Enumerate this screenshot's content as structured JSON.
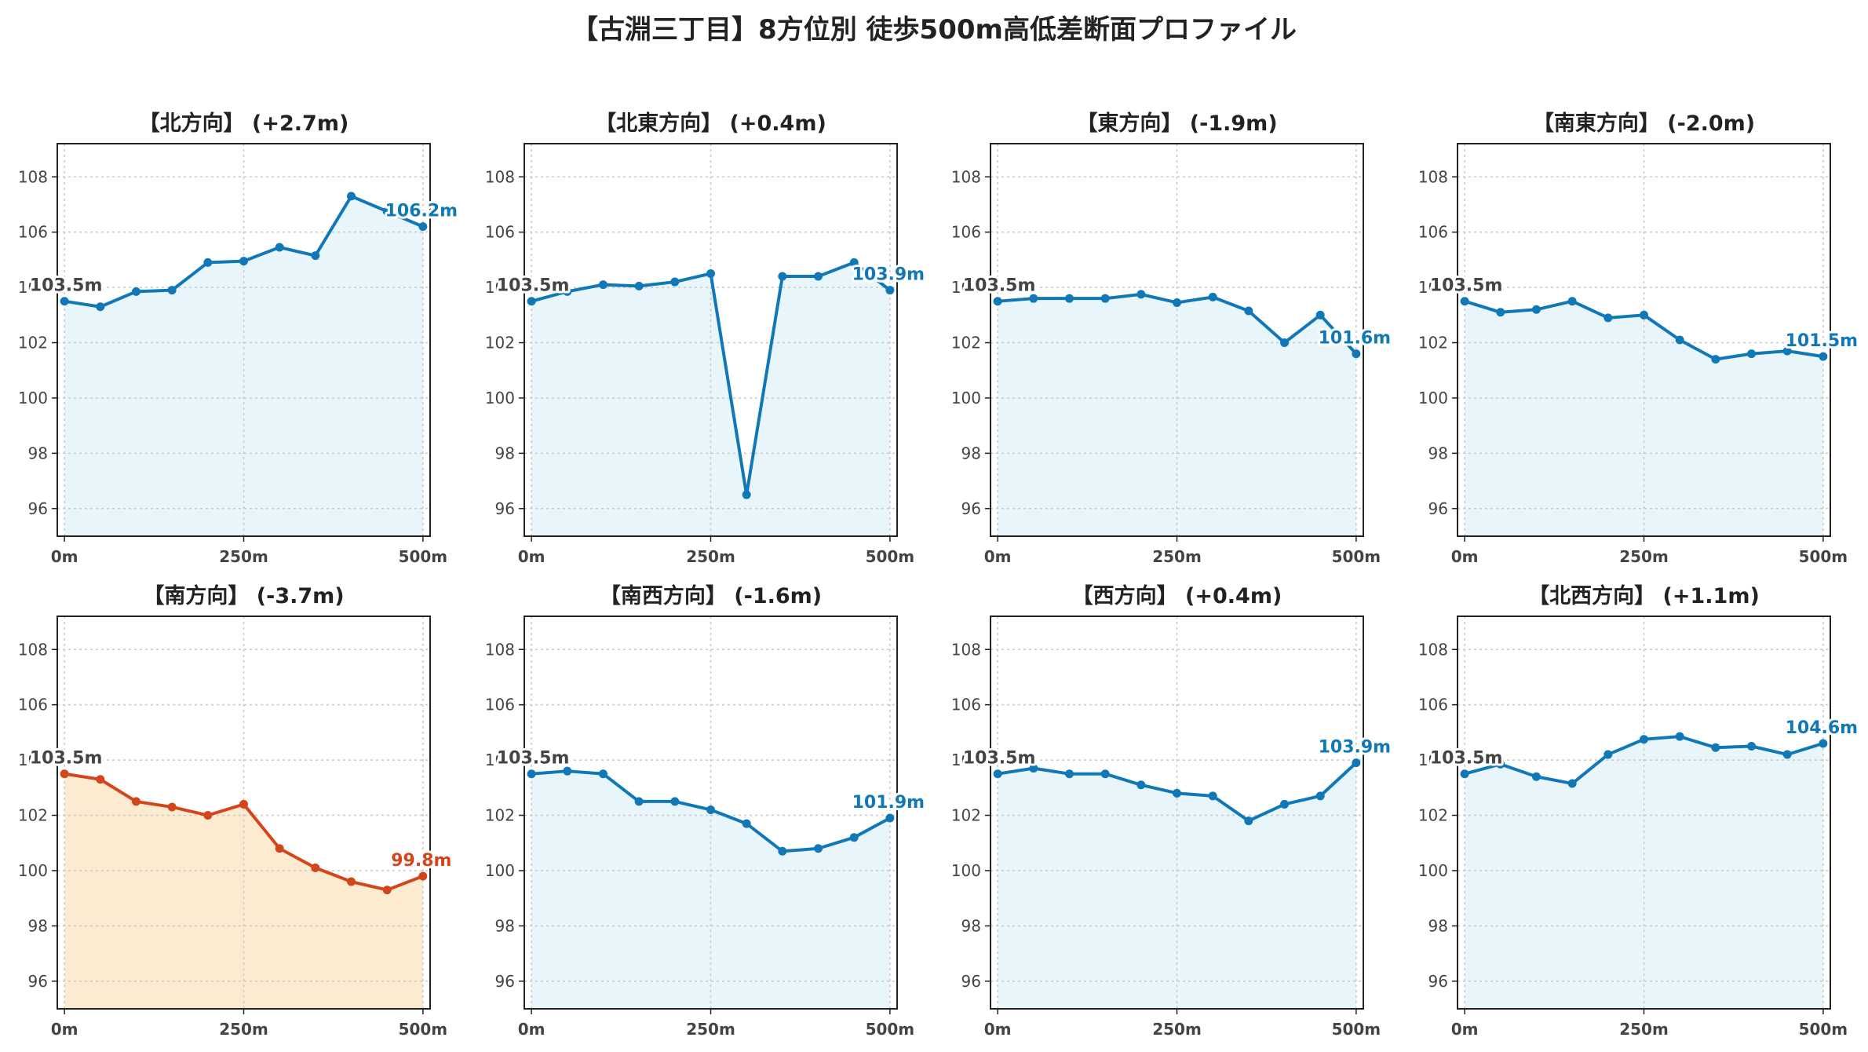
{
  "suptitle": "【古淵三丁目】8方位別 徒歩500m高低差断面プロファイル",
  "colors": {
    "normal_line": "#1178b8",
    "normal_fill": "#e8f6fb",
    "highlight_line": "#d3461c",
    "highlight_fill": "#fdebd1",
    "start_label": "#444444",
    "grid": "#c8c8c8",
    "axis": "#222222",
    "tick_text": "#444444"
  },
  "chart_data": [
    {
      "type": "area",
      "title": "【北方向】 (+2.7m)",
      "highlight": false,
      "x": [
        0,
        50,
        100,
        150,
        200,
        250,
        300,
        350,
        400,
        450,
        500
      ],
      "xticks": [
        0,
        250,
        500
      ],
      "xtick_labels": [
        "0m",
        "250m",
        "500m"
      ],
      "xlim": [
        -10,
        510
      ],
      "ylim": [
        95,
        109.2
      ],
      "yticks": [
        96,
        98,
        100,
        102,
        104,
        106,
        108
      ],
      "ytick_labels": [
        "96",
        "98",
        "100",
        "102",
        "104",
        "106",
        "108"
      ],
      "grid": true,
      "values": [
        103.5,
        103.3,
        103.85,
        103.9,
        104.9,
        104.95,
        105.45,
        105.15,
        107.3,
        106.75,
        106.2
      ],
      "start_label": "103.5m",
      "end_label": "106.2m"
    },
    {
      "type": "area",
      "title": "【北東方向】 (+0.4m)",
      "highlight": false,
      "x": [
        0,
        50,
        100,
        150,
        200,
        250,
        300,
        350,
        400,
        450,
        500
      ],
      "xticks": [
        0,
        250,
        500
      ],
      "xtick_labels": [
        "0m",
        "250m",
        "500m"
      ],
      "xlim": [
        -10,
        510
      ],
      "ylim": [
        95,
        109.2
      ],
      "yticks": [
        96,
        98,
        100,
        102,
        104,
        106,
        108
      ],
      "ytick_labels": [
        "96",
        "98",
        "100",
        "102",
        "104",
        "106",
        "108"
      ],
      "grid": true,
      "values": [
        103.5,
        103.85,
        104.1,
        104.05,
        104.2,
        104.5,
        96.5,
        104.4,
        104.4,
        104.9,
        103.9
      ],
      "start_label": "103.5m",
      "end_label": "103.9m"
    },
    {
      "type": "area",
      "title": "【東方向】 (-1.9m)",
      "highlight": false,
      "x": [
        0,
        50,
        100,
        150,
        200,
        250,
        300,
        350,
        400,
        450,
        500
      ],
      "xticks": [
        0,
        250,
        500
      ],
      "xtick_labels": [
        "0m",
        "250m",
        "500m"
      ],
      "xlim": [
        -10,
        510
      ],
      "ylim": [
        95,
        109.2
      ],
      "yticks": [
        96,
        98,
        100,
        102,
        104,
        106,
        108
      ],
      "ytick_labels": [
        "96",
        "98",
        "100",
        "102",
        "104",
        "106",
        "108"
      ],
      "grid": true,
      "values": [
        103.5,
        103.6,
        103.6,
        103.6,
        103.75,
        103.45,
        103.65,
        103.15,
        102.0,
        103.0,
        101.6
      ],
      "start_label": "103.5m",
      "end_label": "101.6m"
    },
    {
      "type": "area",
      "title": "【南東方向】 (-2.0m)",
      "highlight": false,
      "x": [
        0,
        50,
        100,
        150,
        200,
        250,
        300,
        350,
        400,
        450,
        500
      ],
      "xticks": [
        0,
        250,
        500
      ],
      "xtick_labels": [
        "0m",
        "250m",
        "500m"
      ],
      "xlim": [
        -10,
        510
      ],
      "ylim": [
        95,
        109.2
      ],
      "yticks": [
        96,
        98,
        100,
        102,
        104,
        106,
        108
      ],
      "ytick_labels": [
        "96",
        "98",
        "100",
        "102",
        "104",
        "106",
        "108"
      ],
      "grid": true,
      "values": [
        103.5,
        103.1,
        103.2,
        103.5,
        102.9,
        103.0,
        102.1,
        101.4,
        101.6,
        101.7,
        101.5
      ],
      "start_label": "103.5m",
      "end_label": "101.5m"
    },
    {
      "type": "area",
      "title": "【南方向】 (-3.7m)",
      "highlight": true,
      "x": [
        0,
        50,
        100,
        150,
        200,
        250,
        300,
        350,
        400,
        450,
        500
      ],
      "xticks": [
        0,
        250,
        500
      ],
      "xtick_labels": [
        "0m",
        "250m",
        "500m"
      ],
      "xlim": [
        -10,
        510
      ],
      "ylim": [
        95,
        109.2
      ],
      "yticks": [
        96,
        98,
        100,
        102,
        104,
        106,
        108
      ],
      "ytick_labels": [
        "96",
        "98",
        "100",
        "102",
        "104",
        "106",
        "108"
      ],
      "grid": true,
      "values": [
        103.5,
        103.3,
        102.5,
        102.3,
        102.0,
        102.4,
        100.8,
        100.1,
        99.6,
        99.3,
        99.8
      ],
      "start_label": "103.5m",
      "end_label": "99.8m"
    },
    {
      "type": "area",
      "title": "【南西方向】 (-1.6m)",
      "highlight": false,
      "x": [
        0,
        50,
        100,
        150,
        200,
        250,
        300,
        350,
        400,
        450,
        500
      ],
      "xticks": [
        0,
        250,
        500
      ],
      "xtick_labels": [
        "0m",
        "250m",
        "500m"
      ],
      "xlim": [
        -10,
        510
      ],
      "ylim": [
        95,
        109.2
      ],
      "yticks": [
        96,
        98,
        100,
        102,
        104,
        106,
        108
      ],
      "ytick_labels": [
        "96",
        "98",
        "100",
        "102",
        "104",
        "106",
        "108"
      ],
      "grid": true,
      "values": [
        103.5,
        103.6,
        103.5,
        102.5,
        102.5,
        102.2,
        101.7,
        100.7,
        100.8,
        101.2,
        101.9
      ],
      "start_label": "103.5m",
      "end_label": "101.9m"
    },
    {
      "type": "area",
      "title": "【西方向】 (+0.4m)",
      "highlight": false,
      "x": [
        0,
        50,
        100,
        150,
        200,
        250,
        300,
        350,
        400,
        450,
        500
      ],
      "xticks": [
        0,
        250,
        500
      ],
      "xtick_labels": [
        "0m",
        "250m",
        "500m"
      ],
      "xlim": [
        -10,
        510
      ],
      "ylim": [
        95,
        109.2
      ],
      "yticks": [
        96,
        98,
        100,
        102,
        104,
        106,
        108
      ],
      "ytick_labels": [
        "96",
        "98",
        "100",
        "102",
        "104",
        "106",
        "108"
      ],
      "grid": true,
      "values": [
        103.5,
        103.7,
        103.5,
        103.5,
        103.1,
        102.8,
        102.7,
        101.8,
        102.4,
        102.7,
        103.9
      ],
      "start_label": "103.5m",
      "end_label": "103.9m"
    },
    {
      "type": "area",
      "title": "【北西方向】 (+1.1m)",
      "highlight": false,
      "x": [
        0,
        50,
        100,
        150,
        200,
        250,
        300,
        350,
        400,
        450,
        500
      ],
      "xticks": [
        0,
        250,
        500
      ],
      "xtick_labels": [
        "0m",
        "250m",
        "500m"
      ],
      "xlim": [
        -10,
        510
      ],
      "ylim": [
        95,
        109.2
      ],
      "yticks": [
        96,
        98,
        100,
        102,
        104,
        106,
        108
      ],
      "ytick_labels": [
        "96",
        "98",
        "100",
        "102",
        "104",
        "106",
        "108"
      ],
      "grid": true,
      "values": [
        103.5,
        103.85,
        103.4,
        103.15,
        104.2,
        104.75,
        104.85,
        104.45,
        104.5,
        104.2,
        104.6
      ],
      "start_label": "103.5m",
      "end_label": "104.6m"
    }
  ]
}
